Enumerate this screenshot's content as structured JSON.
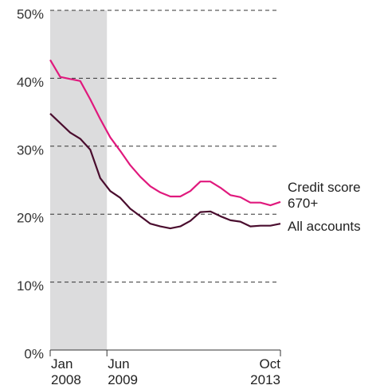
{
  "chart_data": {
    "type": "line",
    "x": [
      "2008-01",
      "2008-04",
      "2008-07",
      "2008-10",
      "2009-01",
      "2009-04",
      "2009-07",
      "2009-10",
      "2010-01",
      "2010-04",
      "2010-07",
      "2010-10",
      "2011-01",
      "2011-04",
      "2011-07",
      "2011-10",
      "2012-01",
      "2012-04",
      "2012-07",
      "2012-10",
      "2013-01",
      "2013-04",
      "2013-07",
      "2013-10"
    ],
    "series": [
      {
        "name": "Credit score 670+",
        "color": "#e0197d",
        "values": [
          42.7,
          40.2,
          39.9,
          39.6,
          36.9,
          34.0,
          31.3,
          29.3,
          27.2,
          25.5,
          24.1,
          23.2,
          22.6,
          22.6,
          23.4,
          24.8,
          24.8,
          23.9,
          22.8,
          22.5,
          21.7,
          21.7,
          21.3,
          21.8
        ]
      },
      {
        "name": "All accounts",
        "color": "#4a0d2e",
        "values": [
          34.8,
          33.4,
          32.0,
          31.1,
          29.5,
          25.3,
          23.4,
          22.4,
          20.8,
          19.7,
          18.6,
          18.2,
          17.9,
          18.2,
          19.0,
          20.3,
          20.4,
          19.7,
          19.1,
          18.9,
          18.2,
          18.3,
          18.3,
          18.6
        ]
      }
    ],
    "xlim": [
      "2008-01",
      "2013-10"
    ],
    "xticks": [
      {
        "value": "2008-01",
        "label": "Jan 2008"
      },
      {
        "value": "2009-06",
        "label": "Jun 2009"
      },
      {
        "value": "2013-10",
        "label": "Oct 2013"
      }
    ],
    "shade": {
      "from": "2008-01",
      "to": "2009-06",
      "color": "#dcdcdd"
    },
    "ylim": [
      0,
      50
    ],
    "yticks": [
      {
        "value": 0,
        "label": "0%"
      },
      {
        "value": 10,
        "label": "10%"
      },
      {
        "value": 20,
        "label": "20%"
      },
      {
        "value": 30,
        "label": "30%"
      },
      {
        "value": 40,
        "label": "40%"
      },
      {
        "value": 50,
        "label": "50%"
      }
    ],
    "grid": true
  }
}
